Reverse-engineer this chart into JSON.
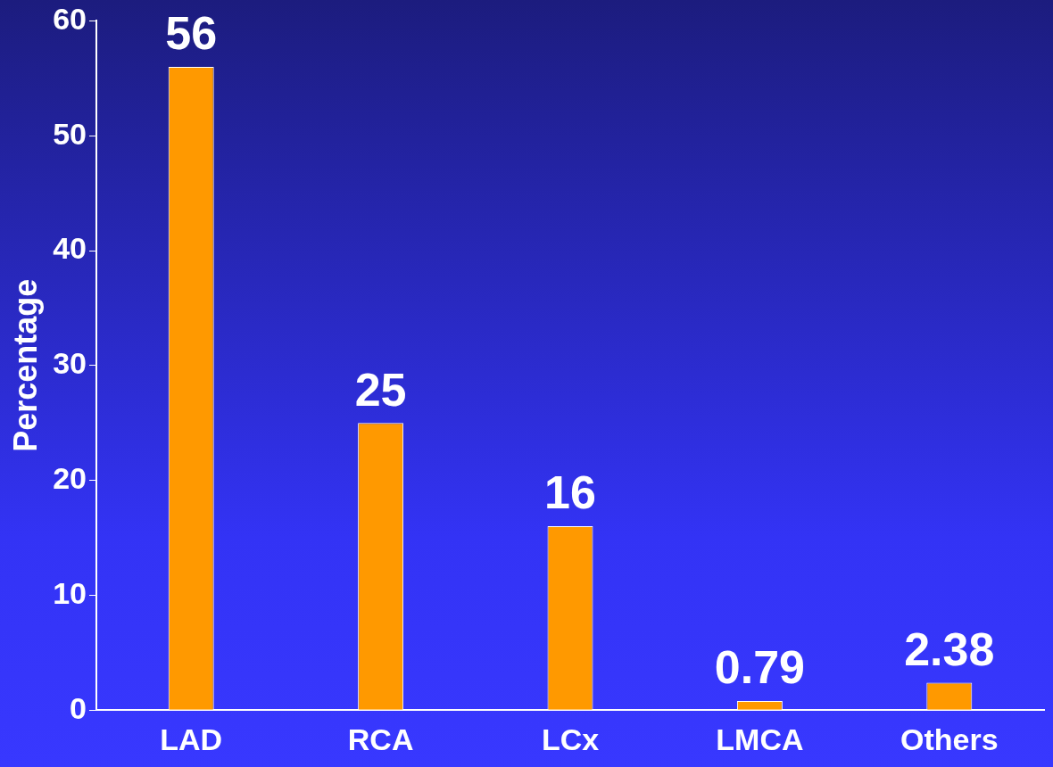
{
  "chart_data": {
    "type": "bar",
    "ylabel": "Percentage",
    "categories": [
      "LAD",
      "RCA",
      "LCx",
      "LMCA",
      "Others"
    ],
    "values": [
      56,
      25,
      16,
      0.79,
      2.38
    ],
    "color": "#ff9900",
    "ylim": [
      0,
      60
    ],
    "yticks": [
      0,
      10,
      20,
      30,
      40,
      50,
      60
    ],
    "grid": false,
    "legend": false,
    "data_labels": true
  }
}
